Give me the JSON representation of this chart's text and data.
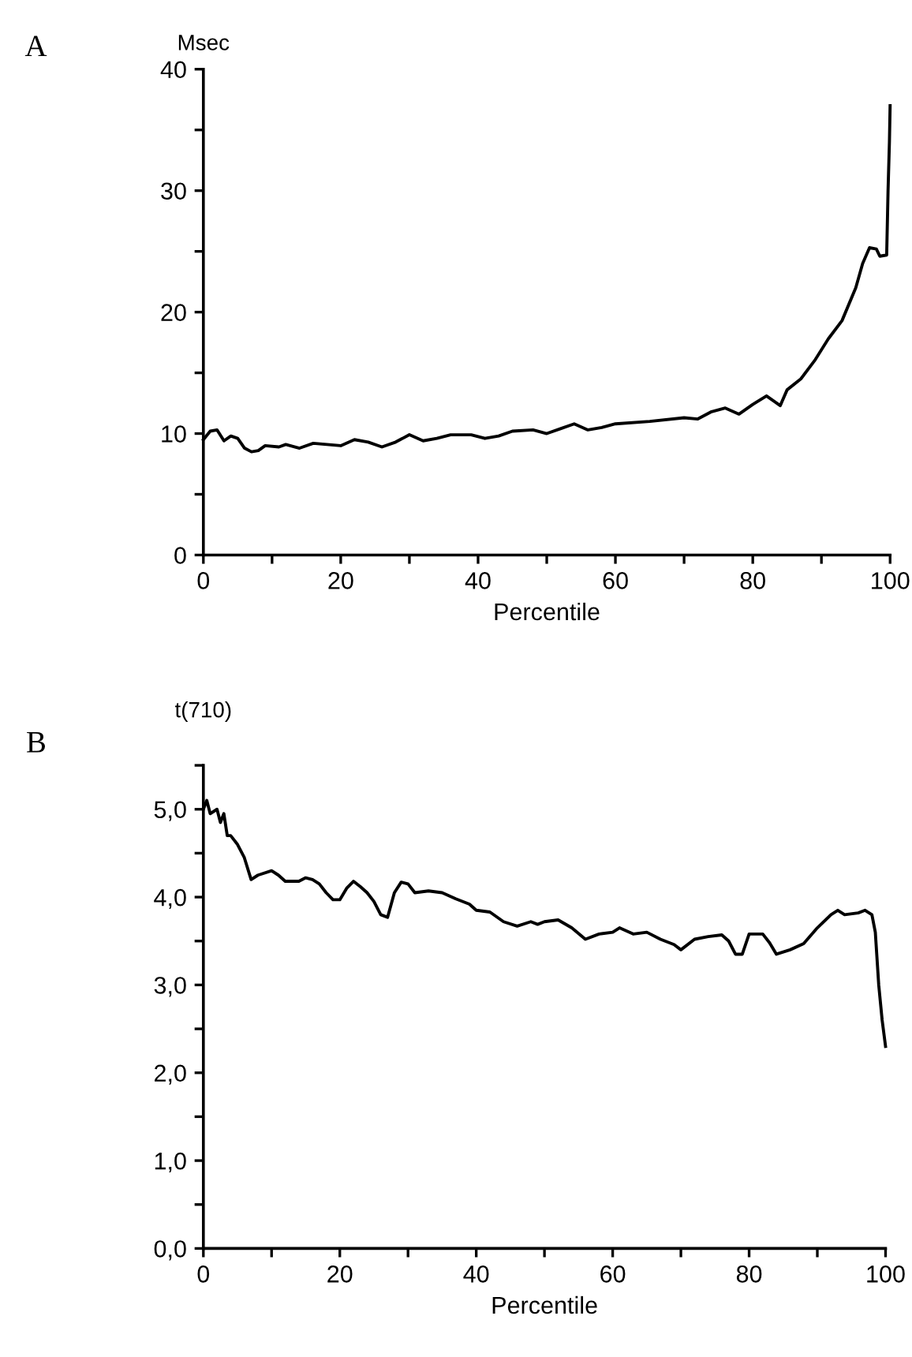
{
  "chart_data": [
    {
      "type": "line",
      "title": "A",
      "ylabel": "Msec",
      "xlabel": "Percentile",
      "xlim": [
        0,
        100
      ],
      "ylim": [
        0,
        40
      ],
      "xticks": [
        0,
        {
          "value": 10,
          "label": null
        },
        20,
        {
          "value": 30,
          "label": null
        },
        40,
        {
          "value": 50,
          "label": null
        },
        60,
        {
          "value": 70,
          "label": null
        },
        80,
        {
          "value": 90,
          "label": null
        },
        100
      ],
      "yticks": [
        0,
        {
          "value": 5,
          "label": null
        },
        10,
        {
          "value": 15,
          "label": null
        },
        20,
        {
          "value": 25,
          "label": null
        },
        30,
        {
          "value": 35,
          "label": null
        },
        40
      ],
      "grid": false,
      "legend": false,
      "marker": "none",
      "line_style": "solid",
      "series": [
        {
          "color": "#000000",
          "x": [
            0,
            1,
            2,
            3,
            4,
            5,
            6,
            7,
            8,
            9,
            11,
            12,
            14,
            16,
            18,
            20,
            22,
            24,
            26,
            28,
            30,
            32,
            34,
            36,
            39,
            41,
            43,
            45,
            48,
            50,
            52,
            54,
            56,
            58,
            60,
            65,
            70,
            72,
            74,
            76,
            78,
            80,
            82,
            84,
            85,
            87,
            89,
            91,
            93,
            95,
            96,
            97,
            98,
            98.5,
            99.5,
            99.7,
            99.9,
            100
          ],
          "values": [
            9.5,
            10.2,
            10.3,
            9.4,
            9.8,
            9.6,
            8.8,
            8.5,
            8.6,
            9.0,
            8.9,
            9.1,
            8.8,
            9.2,
            9.1,
            9.0,
            9.5,
            9.3,
            8.9,
            9.3,
            9.9,
            9.4,
            9.6,
            9.9,
            9.9,
            9.6,
            9.8,
            10.2,
            10.3,
            10.0,
            10.4,
            10.8,
            10.3,
            10.5,
            10.8,
            11.0,
            11.3,
            11.2,
            11.8,
            12.1,
            11.6,
            12.4,
            13.1,
            12.3,
            13.6,
            14.5,
            16.0,
            17.8,
            19.3,
            22.0,
            24.0,
            25.3,
            25.2,
            24.6,
            24.7,
            30.0,
            34.0,
            37.0
          ]
        }
      ]
    },
    {
      "type": "line",
      "title": "B",
      "ylabel": "t(710)",
      "xlabel": "Percentile",
      "xlim": [
        0,
        100
      ],
      "ylim": [
        0,
        5.5
      ],
      "xticks": [
        0,
        {
          "value": 10,
          "label": null
        },
        20,
        {
          "value": 30,
          "label": null
        },
        40,
        {
          "value": 50,
          "label": null
        },
        60,
        {
          "value": 70,
          "label": null
        },
        80,
        {
          "value": 90,
          "label": null
        },
        100
      ],
      "yticks": [
        {
          "value": 0,
          "label": "0,0"
        },
        {
          "value": 0.5,
          "label": null
        },
        {
          "value": 1,
          "label": "1,0"
        },
        {
          "value": 1.5,
          "label": null
        },
        {
          "value": 2,
          "label": "2,0"
        },
        {
          "value": 2.5,
          "label": null
        },
        {
          "value": 3,
          "label": "3,0"
        },
        {
          "value": 3.5,
          "label": null
        },
        {
          "value": 4,
          "label": "4,0"
        },
        {
          "value": 4.5,
          "label": null
        },
        {
          "value": 5,
          "label": "5,0"
        },
        {
          "value": 5.5,
          "label": null
        }
      ],
      "grid": false,
      "legend": false,
      "marker": "none",
      "line_style": "solid",
      "series": [
        {
          "color": "#000000",
          "x": [
            0,
            0.5,
            1,
            2,
            2.5,
            3,
            3.5,
            4,
            5,
            6,
            7,
            8,
            10,
            11,
            12,
            14,
            15,
            16,
            17,
            18,
            19,
            20,
            21,
            22,
            23,
            24,
            25,
            26,
            27,
            28,
            29,
            30,
            31,
            33,
            35,
            37,
            39,
            40,
            42,
            44,
            46,
            48,
            49,
            50,
            52,
            54,
            56,
            58,
            60,
            61,
            63,
            65,
            67,
            69,
            70,
            72,
            74,
            76,
            77,
            78,
            79,
            80,
            82,
            83,
            84,
            86,
            88,
            90,
            92,
            93,
            94,
            96,
            97,
            98,
            98.5,
            99,
            99.5,
            100
          ],
          "values": [
            5.0,
            5.1,
            4.95,
            5.0,
            4.85,
            4.95,
            4.7,
            4.7,
            4.6,
            4.45,
            4.2,
            4.25,
            4.3,
            4.25,
            4.18,
            4.18,
            4.22,
            4.2,
            4.15,
            4.05,
            3.97,
            3.97,
            4.1,
            4.18,
            4.12,
            4.05,
            3.95,
            3.8,
            3.77,
            4.05,
            4.17,
            4.15,
            4.05,
            4.07,
            4.05,
            3.98,
            3.92,
            3.85,
            3.83,
            3.72,
            3.67,
            3.72,
            3.69,
            3.72,
            3.74,
            3.65,
            3.52,
            3.58,
            3.6,
            3.65,
            3.58,
            3.6,
            3.52,
            3.46,
            3.4,
            3.52,
            3.55,
            3.57,
            3.5,
            3.35,
            3.35,
            3.58,
            3.58,
            3.48,
            3.35,
            3.4,
            3.47,
            3.65,
            3.8,
            3.85,
            3.8,
            3.82,
            3.85,
            3.8,
            3.6,
            3.0,
            2.6,
            2.3
          ]
        }
      ]
    }
  ]
}
